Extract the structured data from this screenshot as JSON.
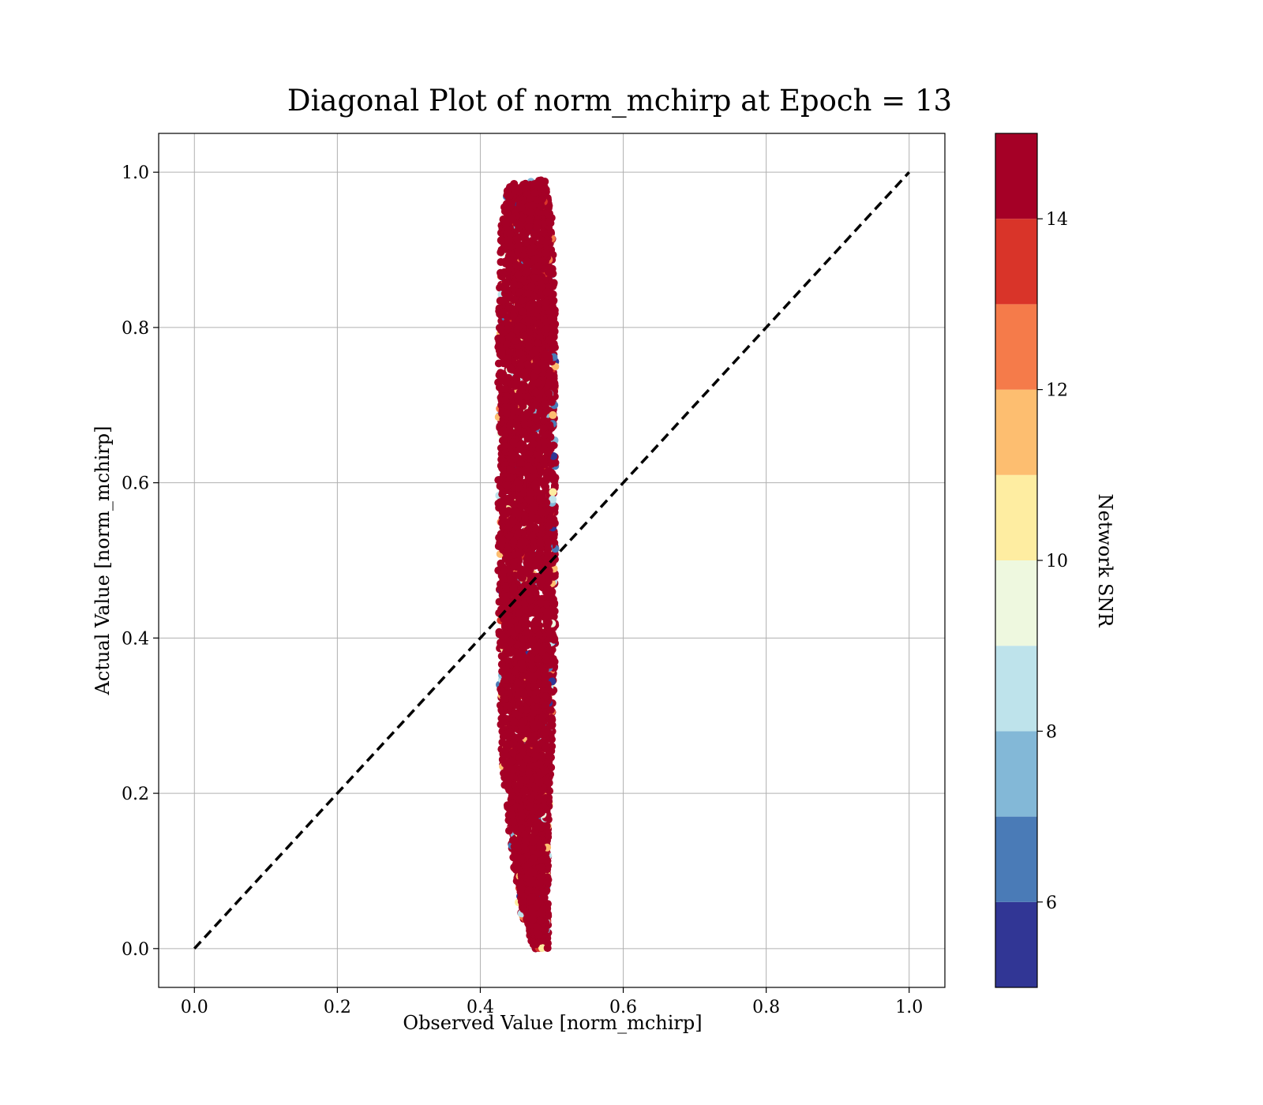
{
  "chart_data": {
    "type": "scatter",
    "title": "Diagonal Plot of norm_mchirp at Epoch = 13",
    "xlabel": "Observed Value [norm_mchirp]",
    "ylabel": "Actual Value [norm_mchirp]",
    "xlim": [
      -0.05,
      1.05
    ],
    "ylim": [
      -0.05,
      1.05
    ],
    "xticks": [
      "0.0",
      "0.2",
      "0.4",
      "0.6",
      "0.8",
      "1.0"
    ],
    "yticks": [
      "0.0",
      "0.2",
      "0.4",
      "0.6",
      "0.8",
      "1.0"
    ],
    "grid": true,
    "diagonal": {
      "from": [
        0.0,
        0.0
      ],
      "to": [
        1.0,
        1.0
      ],
      "style": "dashed",
      "color": "#000000"
    },
    "colorbar": {
      "label": "Network SNR",
      "range": [
        5,
        15
      ],
      "ticks": [
        "6",
        "8",
        "10",
        "12",
        "14"
      ],
      "bins": [
        {
          "from": 5,
          "to": 6,
          "color": "#313695"
        },
        {
          "from": 6,
          "to": 7,
          "color": "#4a7bb7"
        },
        {
          "from": 7,
          "to": 8,
          "color": "#83b8d7"
        },
        {
          "from": 8,
          "to": 9,
          "color": "#bee3eb"
        },
        {
          "from": 9,
          "to": 10,
          "color": "#eef8df"
        },
        {
          "from": 10,
          "to": 11,
          "color": "#feeda1"
        },
        {
          "from": 11,
          "to": 12,
          "color": "#fdbe70"
        },
        {
          "from": 12,
          "to": 13,
          "color": "#f57b4a"
        },
        {
          "from": 13,
          "to": 14,
          "color": "#d93429"
        },
        {
          "from": 14,
          "to": 15,
          "color": "#a50026"
        }
      ]
    },
    "point_cloud": {
      "note_x_range_observed": [
        0.42,
        0.51
      ],
      "band": [
        {
          "y": 0.0,
          "x_min": 0.475,
          "x_max": 0.495
        },
        {
          "y": 0.05,
          "x_min": 0.455,
          "x_max": 0.495
        },
        {
          "y": 0.15,
          "x_min": 0.44,
          "x_max": 0.495
        },
        {
          "y": 0.25,
          "x_min": 0.43,
          "x_max": 0.5
        },
        {
          "y": 0.4,
          "x_min": 0.425,
          "x_max": 0.505
        },
        {
          "y": 0.6,
          "x_min": 0.425,
          "x_max": 0.505
        },
        {
          "y": 0.8,
          "x_min": 0.425,
          "x_max": 0.505
        },
        {
          "y": 0.95,
          "x_min": 0.43,
          "x_max": 0.5
        },
        {
          "y": 0.99,
          "x_min": 0.44,
          "x_max": 0.49
        }
      ],
      "dominant_snr": 15
    }
  }
}
